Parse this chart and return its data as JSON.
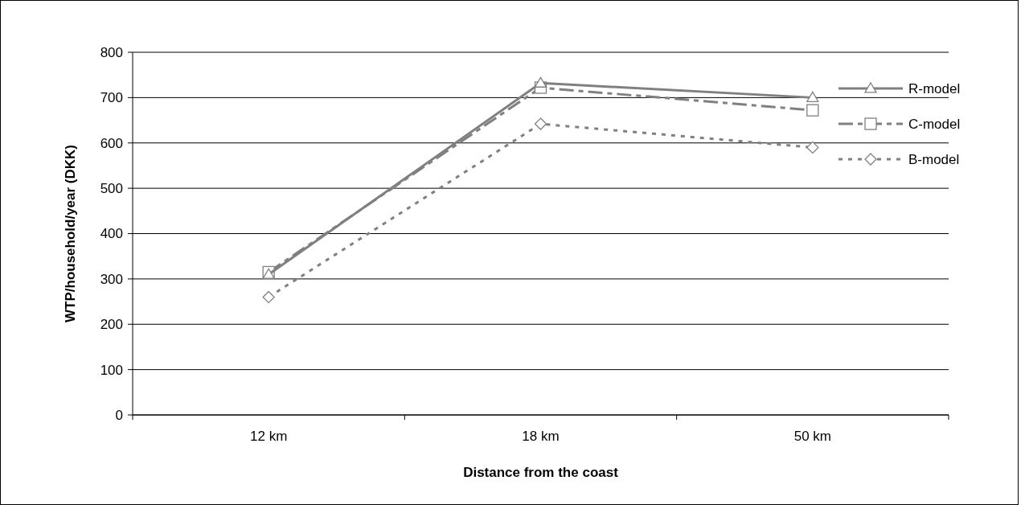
{
  "chart_data": {
    "type": "line",
    "xlabel": "Distance from the coast",
    "ylabel": "WTP/household/year (DKK)",
    "categories": [
      "12 km",
      "18 km",
      "50 km"
    ],
    "series": [
      {
        "name": "R-model",
        "color": "#808080",
        "values": [
          310,
          732,
          700
        ],
        "marker": "triangle",
        "line_style": "solid"
      },
      {
        "name": "C-model",
        "color": "#808080",
        "values": [
          315,
          722,
          672
        ],
        "marker": "square",
        "line_style": "dashed"
      },
      {
        "name": "B-model",
        "color": "#808080",
        "values": [
          260,
          642,
          590
        ],
        "marker": "diamond",
        "line_style": "dotted"
      }
    ],
    "ylim": [
      0,
      800
    ],
    "yticks": [
      0,
      100,
      200,
      300,
      400,
      500,
      600,
      700,
      800
    ],
    "grid": "y",
    "legend": "right"
  }
}
